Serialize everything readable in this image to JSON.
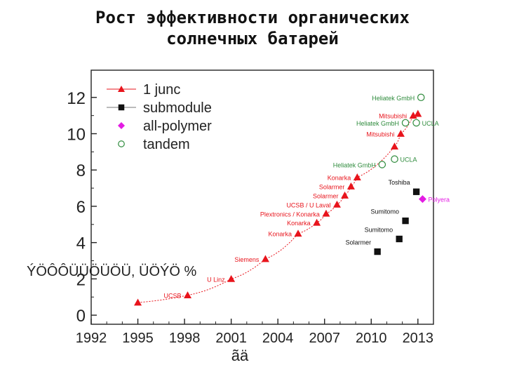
{
  "slide": {
    "title_line1": "Рост эффективности органических",
    "title_line2": "солнечных батарей"
  },
  "chart_data": {
    "type": "scatter",
    "title": "",
    "xlabel": "ãä",
    "ylabel": "ÝÖÔÔÜÜÖÜÖÜ, ÜÖÝÖ %",
    "xlim": [
      1992,
      2014
    ],
    "ylim": [
      -0.5,
      13.5
    ],
    "x_ticks": [
      1992,
      1995,
      1998,
      2001,
      2004,
      2007,
      2010,
      2013
    ],
    "y_ticks": [
      0,
      2,
      4,
      6,
      8,
      10,
      12
    ],
    "legend_position": "top-left",
    "series": [
      {
        "name": "1 junc",
        "marker": "triangle",
        "color": "#e8141c",
        "trend_line": true,
        "points": [
          {
            "x": 1995.0,
            "y": 0.7,
            "label": ""
          },
          {
            "x": 1998.2,
            "y": 1.1,
            "label": "UCSB"
          },
          {
            "x": 2001.0,
            "y": 2.0,
            "label": "U Linz"
          },
          {
            "x": 2003.2,
            "y": 3.1,
            "label": "Siemens"
          },
          {
            "x": 2005.3,
            "y": 4.5,
            "label": "Konarka"
          },
          {
            "x": 2006.5,
            "y": 5.1,
            "label": "Konarka"
          },
          {
            "x": 2007.1,
            "y": 5.6,
            "label": "Plextronics / Konarka"
          },
          {
            "x": 2007.8,
            "y": 6.1,
            "label": "UCSB / U Laval"
          },
          {
            "x": 2008.3,
            "y": 6.6,
            "label": "Solarmer"
          },
          {
            "x": 2008.7,
            "y": 7.1,
            "label": "Solarmer"
          },
          {
            "x": 2009.1,
            "y": 7.6,
            "label": "Konarka"
          },
          {
            "x": 2011.5,
            "y": 9.3,
            "label": ""
          },
          {
            "x": 2011.9,
            "y": 10.0,
            "label": "Mitsubishi"
          },
          {
            "x": 2012.7,
            "y": 11.0,
            "label": "Mitsubishi"
          },
          {
            "x": 2013.0,
            "y": 11.1,
            "label": ""
          }
        ]
      },
      {
        "name": "submodule",
        "marker": "square",
        "color": "#111111",
        "trend_line": false,
        "points": [
          {
            "x": 2010.4,
            "y": 3.5,
            "label": "Solarmer"
          },
          {
            "x": 2011.8,
            "y": 4.2,
            "label": "Sumitomo"
          },
          {
            "x": 2012.2,
            "y": 5.2,
            "label": "Sumitomo"
          },
          {
            "x": 2012.9,
            "y": 6.8,
            "label": "Toshiba"
          }
        ]
      },
      {
        "name": "all-polymer",
        "marker": "diamond",
        "color": "#e31ce3",
        "trend_line": false,
        "points": [
          {
            "x": 2013.3,
            "y": 6.4,
            "label": "Polyera"
          }
        ]
      },
      {
        "name": "tandem",
        "marker": "circle",
        "color": "#2e8b3c",
        "trend_line": false,
        "points": [
          {
            "x": 2010.7,
            "y": 8.3,
            "label": "Heliatek GmbH"
          },
          {
            "x": 2011.5,
            "y": 8.6,
            "label": "UCLA"
          },
          {
            "x": 2012.2,
            "y": 10.6,
            "label": "Heliatek GmbH"
          },
          {
            "x": 2012.9,
            "y": 10.6,
            "label": "UCLA"
          },
          {
            "x": 2013.2,
            "y": 12.0,
            "label": "Heliatek GmbH"
          }
        ]
      }
    ]
  }
}
